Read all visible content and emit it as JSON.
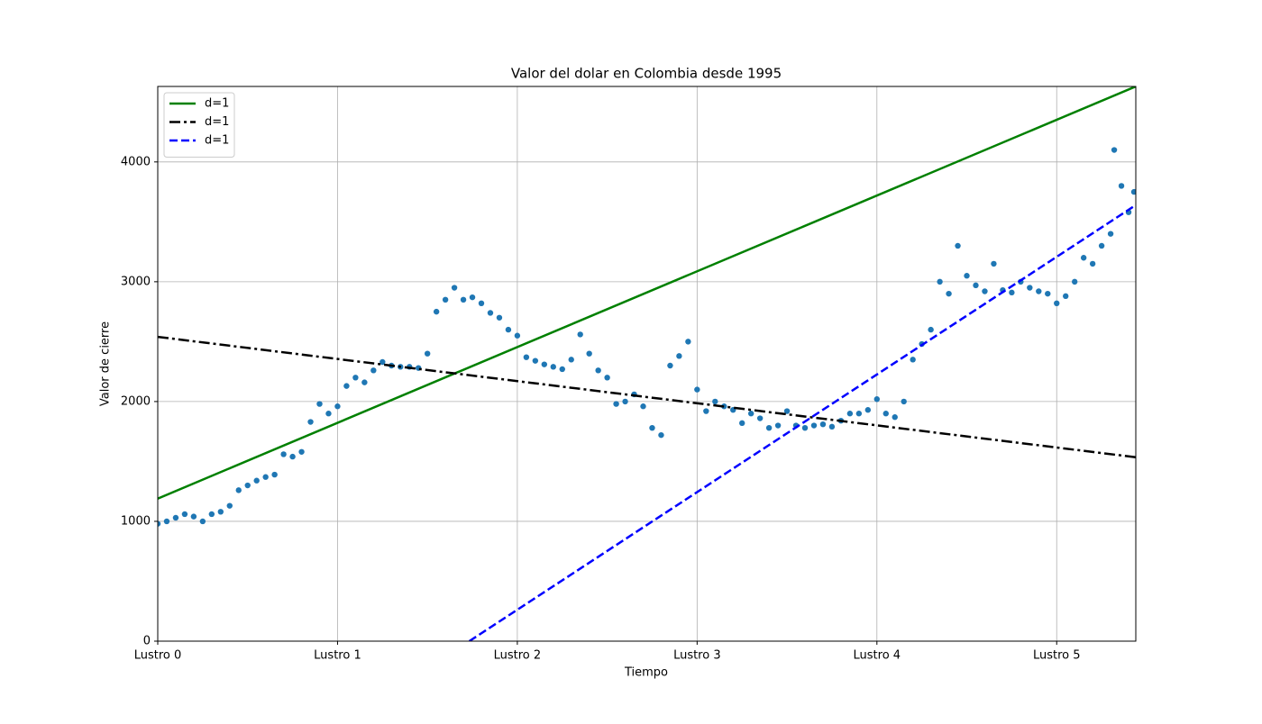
{
  "chart_data": {
    "type": "scatter",
    "title": "Valor del dolar en Colombia desde 1995",
    "x_label": "Tiempo",
    "y_label": "Valor de cierre",
    "xlim": [
      0,
      5.44
    ],
    "ylim": [
      0,
      4630
    ],
    "xticks": [
      {
        "value": 0,
        "label": "Lustro 0"
      },
      {
        "value": 1,
        "label": "Lustro 1"
      },
      {
        "value": 2,
        "label": "Lustro 2"
      },
      {
        "value": 3,
        "label": "Lustro 3"
      },
      {
        "value": 4,
        "label": "Lustro 4"
      },
      {
        "value": 5,
        "label": "Lustro 5"
      }
    ],
    "yticks": [
      0,
      1000,
      2000,
      3000,
      4000
    ],
    "grid": true,
    "legend": "upper left",
    "points": {
      "color": "#1f77b4",
      "x": [
        0,
        0.05,
        0.1,
        0.15,
        0.2,
        0.25,
        0.3,
        0.35,
        0.4,
        0.45,
        0.5,
        0.55,
        0.6,
        0.65,
        0.7,
        0.75,
        0.8,
        0.85,
        0.9,
        0.95,
        1.0,
        1.05,
        1.1,
        1.15,
        1.2,
        1.25,
        1.3,
        1.35,
        1.4,
        1.45,
        1.5,
        1.55,
        1.6,
        1.65,
        1.7,
        1.75,
        1.8,
        1.85,
        1.9,
        1.95,
        2.0,
        2.05,
        2.1,
        2.15,
        2.2,
        2.25,
        2.3,
        2.35,
        2.4,
        2.45,
        2.5,
        2.55,
        2.6,
        2.65,
        2.7,
        2.75,
        2.8,
        2.85,
        2.9,
        2.95,
        3.0,
        3.05,
        3.1,
        3.15,
        3.2,
        3.25,
        3.3,
        3.35,
        3.4,
        3.45,
        3.5,
        3.55,
        3.6,
        3.65,
        3.7,
        3.75,
        3.8,
        3.85,
        3.9,
        3.95,
        4.0,
        4.05,
        4.1,
        4.15,
        4.2,
        4.25,
        4.3,
        4.35,
        4.4,
        4.45,
        4.5,
        4.55,
        4.6,
        4.65,
        4.7,
        4.75,
        4.8,
        4.85,
        4.9,
        4.95,
        5.0,
        5.05,
        5.1,
        5.15,
        5.2,
        5.25,
        5.3,
        5.32,
        5.36,
        5.4,
        5.43
      ],
      "values": [
        980,
        1000,
        1030,
        1060,
        1040,
        1000,
        1060,
        1080,
        1130,
        1260,
        1300,
        1340,
        1370,
        1390,
        1560,
        1540,
        1580,
        1830,
        1980,
        1900,
        1960,
        2130,
        2200,
        2160,
        2260,
        2330,
        2300,
        2290,
        2290,
        2280,
        2400,
        2750,
        2850,
        2950,
        2850,
        2870,
        2820,
        2740,
        2700,
        2600,
        2550,
        2370,
        2340,
        2310,
        2290,
        2270,
        2350,
        2560,
        2400,
        2260,
        2200,
        1980,
        2000,
        2060,
        1960,
        1780,
        1720,
        2300,
        2380,
        2500,
        2100,
        1920,
        2000,
        1960,
        1930,
        1820,
        1900,
        1860,
        1780,
        1800,
        1920,
        1800,
        1780,
        1800,
        1810,
        1790,
        1840,
        1900,
        1900,
        1930,
        2020,
        1900,
        1870,
        2000,
        2350,
        2480,
        2600,
        3000,
        2900,
        3300,
        3050,
        2970,
        2920,
        3150,
        2930,
        2910,
        3000,
        2950,
        2920,
        2900,
        2820,
        2880,
        3000,
        3200,
        3150,
        3300,
        3400,
        4100,
        3800,
        3580,
        3750
      ]
    },
    "lines": [
      {
        "name": "d=1",
        "color": "#008000",
        "dash": "solid",
        "x": [
          0,
          5.44
        ],
        "values": [
          1190,
          4630
        ]
      },
      {
        "name": "d=1",
        "color": "#000000",
        "dash": "dashdot",
        "x": [
          0,
          5.44
        ],
        "values": [
          2540,
          1535
        ]
      },
      {
        "name": "d=1",
        "color": "#0000ff",
        "dash": "dashed",
        "x": [
          1.733,
          5.44
        ],
        "values": [
          0,
          3640
        ]
      }
    ]
  }
}
